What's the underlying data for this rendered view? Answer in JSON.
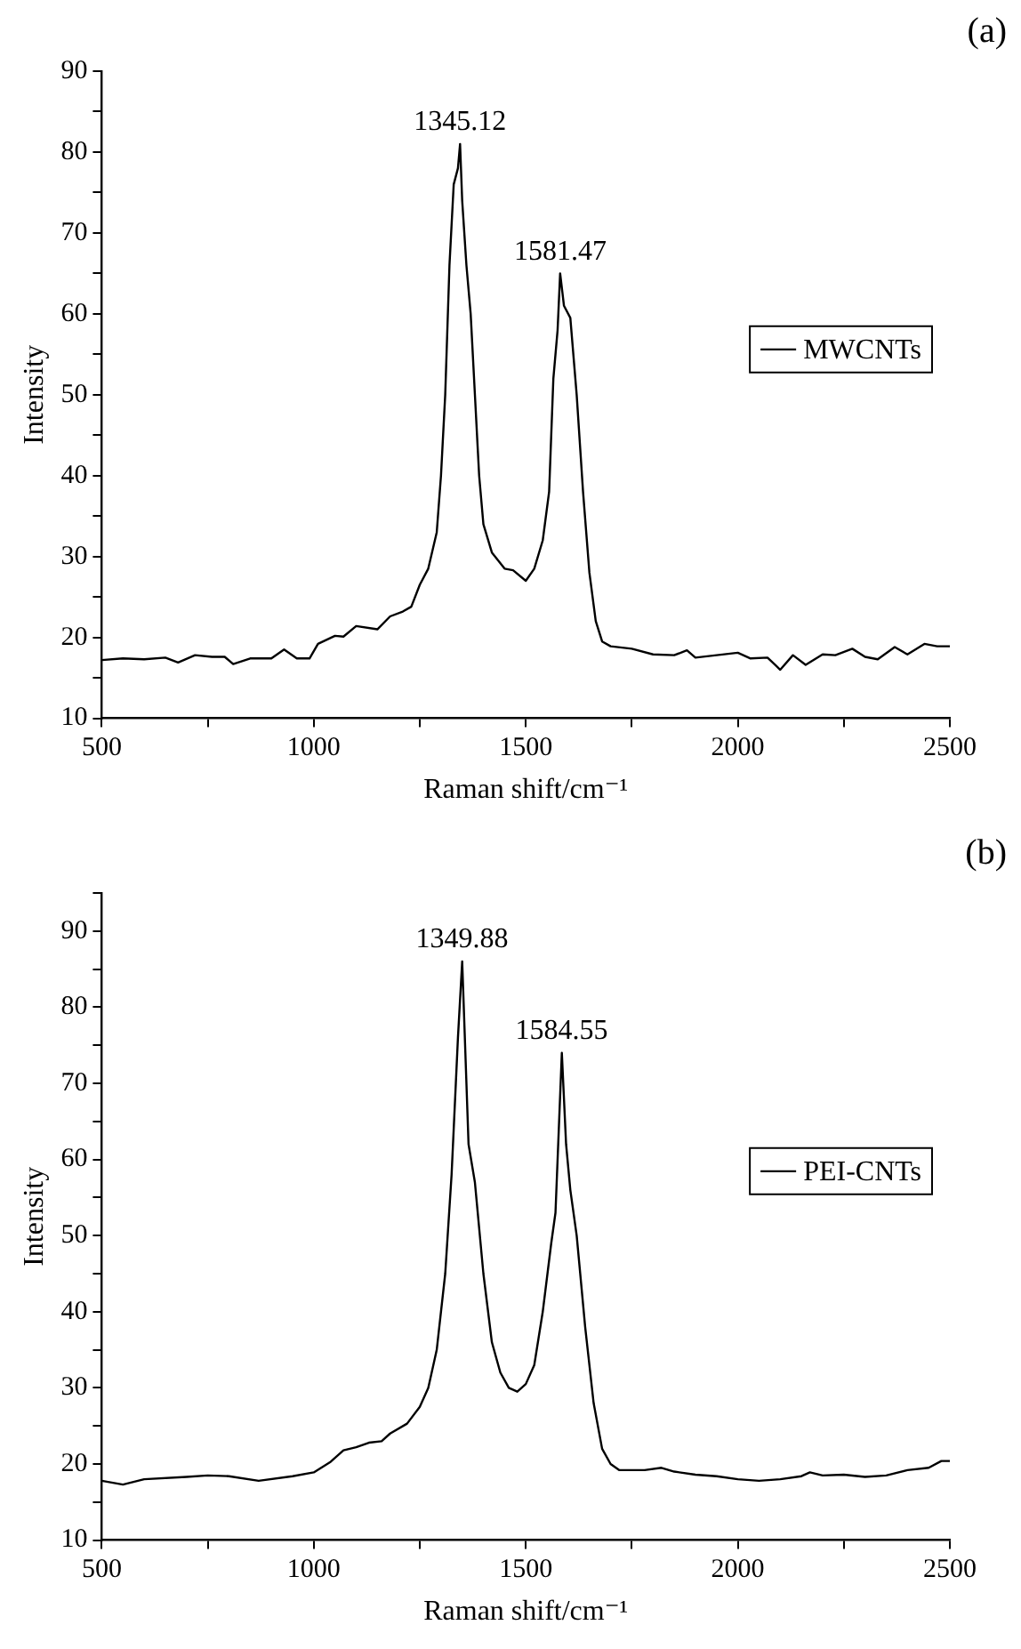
{
  "chart_data": [
    {
      "type": "line",
      "xlabel": "Raman shift/cm⁻¹",
      "ylabel": "Intensity",
      "xlim": [
        500,
        2500
      ],
      "ylim": [
        10,
        90
      ],
      "xticks": [
        500,
        {
          "value": 750,
          "label": null
        },
        1000,
        {
          "value": 1250,
          "label": null
        },
        1500,
        {
          "value": 1750,
          "label": null
        },
        2000,
        {
          "value": 2250,
          "label": null
        },
        2500
      ],
      "yticks": [
        10,
        {
          "value": 15,
          "label": null
        },
        20,
        {
          "value": 25,
          "label": null
        },
        30,
        {
          "value": 35,
          "label": null
        },
        40,
        {
          "value": 45,
          "label": null
        },
        50,
        {
          "value": 55,
          "label": null
        },
        60,
        {
          "value": 65,
          "label": null
        },
        70,
        {
          "value": 75,
          "label": null
        },
        80,
        {
          "value": 85,
          "label": null
        },
        90
      ],
      "legend": "right",
      "marker": "none",
      "line_style": "solid",
      "annotations": [
        "(a)",
        {
          "text": "1345.12",
          "x": 1345.12,
          "y": 81
        },
        {
          "text": "1581.47",
          "x": 1581.47,
          "y": 65
        }
      ],
      "series": [
        {
          "name": "MWCNTs",
          "color": "#000000",
          "x": [
            500,
            550,
            600,
            650,
            680,
            720,
            760,
            790,
            810,
            850,
            900,
            930,
            960,
            990,
            1010,
            1050,
            1070,
            1100,
            1150,
            1180,
            1210,
            1230,
            1250,
            1270,
            1290,
            1300,
            1310,
            1320,
            1330,
            1340,
            1345,
            1350,
            1360,
            1370,
            1380,
            1390,
            1400,
            1420,
            1450,
            1470,
            1500,
            1520,
            1540,
            1555,
            1565,
            1575,
            1581,
            1590,
            1605,
            1620,
            1635,
            1650,
            1665,
            1680,
            1700,
            1750,
            1800,
            1850,
            1880,
            1900,
            1950,
            2000,
            2030,
            2070,
            2090,
            2100,
            2130,
            2160,
            2200,
            2230,
            2270,
            2300,
            2330,
            2370,
            2400,
            2440,
            2470,
            2500
          ],
          "values": [
            17.2,
            17.4,
            17.3,
            17.5,
            16.9,
            17.8,
            17.6,
            17.6,
            16.7,
            17.4,
            17.4,
            18.5,
            17.4,
            17.4,
            19.2,
            20.2,
            20.1,
            21.4,
            21.0,
            22.6,
            23.2,
            23.8,
            26.5,
            28.5,
            33,
            40,
            50,
            66,
            76,
            78,
            81,
            74,
            66,
            60,
            50,
            40,
            34,
            30.5,
            28.5,
            28.3,
            27.0,
            28.5,
            32,
            38,
            52,
            58,
            65,
            61,
            59.5,
            50,
            38,
            28,
            22,
            19.5,
            18.9,
            18.6,
            17.9,
            17.8,
            18.4,
            17.5,
            17.8,
            18.1,
            17.4,
            17.5,
            16.5,
            16.0,
            17.8,
            16.6,
            17.9,
            17.8,
            18.6,
            17.6,
            17.3,
            18.8,
            17.9,
            19.2,
            18.9,
            18.9
          ]
        }
      ]
    },
    {
      "type": "line",
      "xlabel": "Raman shift/cm⁻¹",
      "ylabel": "Intensity",
      "xlim": [
        500,
        2500
      ],
      "ylim": [
        10,
        95
      ],
      "xticks": [
        500,
        {
          "value": 750,
          "label": null
        },
        1000,
        {
          "value": 1250,
          "label": null
        },
        1500,
        {
          "value": 1750,
          "label": null
        },
        2000,
        {
          "value": 2250,
          "label": null
        },
        2500
      ],
      "yticks": [
        10,
        {
          "value": 15,
          "label": null
        },
        20,
        {
          "value": 25,
          "label": null
        },
        30,
        {
          "value": 35,
          "label": null
        },
        40,
        {
          "value": 45,
          "label": null
        },
        50,
        {
          "value": 55,
          "label": null
        },
        60,
        {
          "value": 65,
          "label": null
        },
        70,
        {
          "value": 75,
          "label": null
        },
        80,
        {
          "value": 85,
          "label": null
        },
        90,
        {
          "value": 95,
          "label": null
        }
      ],
      "legend": "right",
      "marker": "none",
      "line_style": "solid",
      "annotations": [
        "(b)",
        {
          "text": "1349.88",
          "x": 1349.88,
          "y": 86
        },
        {
          "text": "1584.55",
          "x": 1584.55,
          "y": 74
        }
      ],
      "series": [
        {
          "name": "PEI-CNTs",
          "color": "#000000",
          "x": [
            500,
            550,
            600,
            700,
            750,
            800,
            870,
            950,
            1000,
            1040,
            1070,
            1100,
            1130,
            1160,
            1180,
            1220,
            1250,
            1270,
            1290,
            1310,
            1325,
            1335,
            1340,
            1350,
            1360,
            1365,
            1380,
            1400,
            1420,
            1440,
            1460,
            1480,
            1500,
            1520,
            1540,
            1560,
            1570,
            1585,
            1595,
            1605,
            1620,
            1640,
            1660,
            1680,
            1700,
            1720,
            1780,
            1820,
            1850,
            1900,
            1950,
            2000,
            2050,
            2100,
            2150,
            2170,
            2200,
            2250,
            2300,
            2350,
            2400,
            2450,
            2480,
            2500
          ],
          "values": [
            17.8,
            17.3,
            18.0,
            18.3,
            18.5,
            18.4,
            17.8,
            18.4,
            18.9,
            20.3,
            21.8,
            22.2,
            22.8,
            23.0,
            24.0,
            25.3,
            27.5,
            30,
            35,
            45,
            58,
            70,
            76,
            86,
            70,
            62,
            57,
            45,
            36,
            32,
            30,
            29.5,
            30.5,
            33,
            40,
            49,
            53,
            74,
            62,
            56,
            50,
            38,
            28,
            22,
            20,
            19.2,
            19.2,
            19.5,
            19.0,
            18.6,
            18.4,
            18.0,
            17.8,
            18.0,
            18.4,
            18.9,
            18.5,
            18.6,
            18.3,
            18.5,
            19.2,
            19.5,
            20.4,
            20.4
          ]
        }
      ]
    }
  ]
}
